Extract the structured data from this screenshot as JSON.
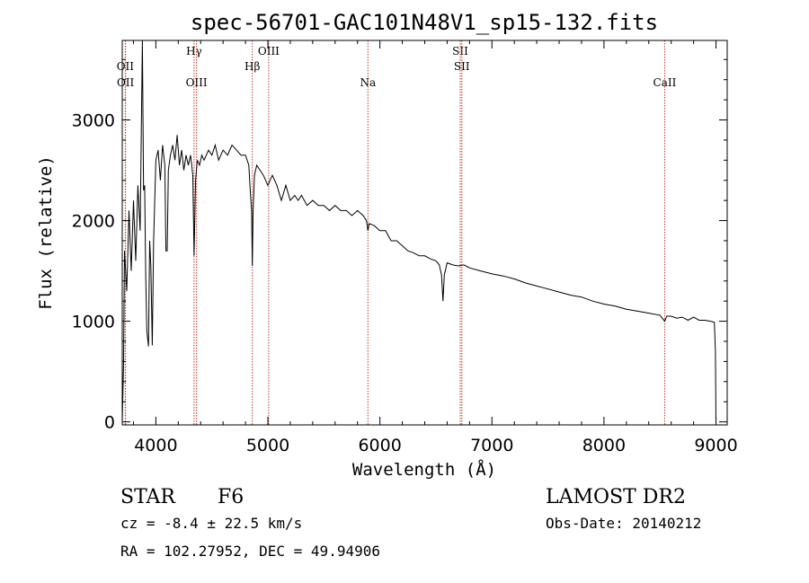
{
  "chart_data": {
    "type": "line",
    "title": "spec-56701-GAC101N48V1_sp15-132.fits",
    "xlabel": "Wavelength (Å)",
    "ylabel": "Flux (relative)",
    "xlim": [
      3700,
      9100
    ],
    "ylim": [
      -30,
      3790
    ],
    "xticks": [
      4000,
      5000,
      6000,
      7000,
      8000,
      9000
    ],
    "yticks": [
      0,
      1000,
      2000,
      3000
    ],
    "grid": false,
    "line_color": "#000000",
    "marker_color": "#c0392b",
    "spectral_lines": [
      {
        "label": "OII",
        "wavelength": 3727,
        "row": 2
      },
      {
        "label": "OII",
        "wavelength": 3729,
        "row": 3
      },
      {
        "label": "Hγ",
        "wavelength": 4341,
        "row": 1
      },
      {
        "label": "OIII",
        "wavelength": 4363,
        "row": 3
      },
      {
        "label": "Hβ",
        "wavelength": 4861,
        "row": 2
      },
      {
        "label": "OIII",
        "wavelength": 5007,
        "row": 1
      },
      {
        "label": "Na",
        "wavelength": 5893,
        "row": 3
      },
      {
        "label": "SII",
        "wavelength": 6717,
        "row": 1
      },
      {
        "label": "SII",
        "wavelength": 6731,
        "row": 2
      },
      {
        "label": "CaII",
        "wavelength": 8542,
        "row": 3
      }
    ],
    "series": [
      {
        "x": [
          3700,
          3712,
          3720,
          3740,
          3760,
          3780,
          3800,
          3820,
          3840,
          3860,
          3880,
          3890,
          3900,
          3910,
          3920,
          3934,
          3945,
          3955,
          3968,
          3980,
          4000,
          4020,
          4040,
          4060,
          4080,
          4090,
          4101,
          4112,
          4130,
          4150,
          4170,
          4190,
          4210,
          4230,
          4250,
          4270,
          4290,
          4310,
          4330,
          4341,
          4355,
          4370,
          4390,
          4410,
          4430,
          4450,
          4470,
          4500,
          4530,
          4560,
          4600,
          4640,
          4680,
          4720,
          4760,
          4800,
          4830,
          4845,
          4855,
          4861,
          4868,
          4880,
          4900,
          4930,
          4960,
          5000,
          5040,
          5080,
          5120,
          5160,
          5200,
          5240,
          5270,
          5300,
          5350,
          5400,
          5450,
          5500,
          5550,
          5600,
          5650,
          5700,
          5750,
          5800,
          5850,
          5880,
          5893,
          5905,
          5950,
          6000,
          6050,
          6100,
          6150,
          6200,
          6250,
          6300,
          6350,
          6400,
          6450,
          6500,
          6530,
          6550,
          6563,
          6575,
          6600,
          6650,
          6700,
          6750,
          6800,
          6900,
          7000,
          7100,
          7200,
          7300,
          7400,
          7500,
          7600,
          7700,
          7800,
          7900,
          8000,
          8100,
          8200,
          8300,
          8400,
          8500,
          8542,
          8560,
          8600,
          8650,
          8700,
          8750,
          8800,
          8850,
          8900,
          8950,
          8985,
          8995,
          9000
        ],
        "y": [
          0,
          600,
          1700,
          1300,
          2100,
          1500,
          2200,
          1600,
          2350,
          1900,
          3790,
          2300,
          2350,
          1400,
          900,
          750,
          1800,
          1550,
          760,
          1800,
          2600,
          2700,
          2400,
          2750,
          2550,
          1700,
          1700,
          2500,
          2650,
          2750,
          2600,
          2850,
          2550,
          2700,
          2500,
          2650,
          2550,
          2650,
          2450,
          1650,
          2400,
          2600,
          2550,
          2650,
          2600,
          2650,
          2700,
          2650,
          2750,
          2600,
          2700,
          2650,
          2750,
          2700,
          2650,
          2650,
          2550,
          2250,
          2100,
          1550,
          2100,
          2450,
          2550,
          2500,
          2450,
          2350,
          2450,
          2350,
          2200,
          2350,
          2200,
          2250,
          2200,
          2250,
          2150,
          2200,
          2150,
          2150,
          2100,
          2150,
          2100,
          2100,
          2050,
          2100,
          2050,
          2000,
          1900,
          1970,
          1950,
          1900,
          1900,
          1800,
          1800,
          1750,
          1700,
          1680,
          1650,
          1650,
          1620,
          1600,
          1560,
          1460,
          1200,
          1460,
          1580,
          1560,
          1550,
          1560,
          1530,
          1500,
          1470,
          1450,
          1420,
          1380,
          1350,
          1320,
          1290,
          1260,
          1240,
          1200,
          1170,
          1150,
          1120,
          1100,
          1080,
          1060,
          1000,
          1050,
          1050,
          1030,
          1040,
          1010,
          1040,
          1010,
          1010,
          1000,
          990,
          700,
          0
        ]
      }
    ]
  },
  "info": {
    "object_class": "STAR",
    "subclass": "F6",
    "survey": "LAMOST DR2",
    "redshift": "cz = -8.4 ± 22.5 km/s",
    "obs_date": "Obs-Date: 20140212",
    "coords": "RA = 102.27952, DEC =  49.94906"
  }
}
